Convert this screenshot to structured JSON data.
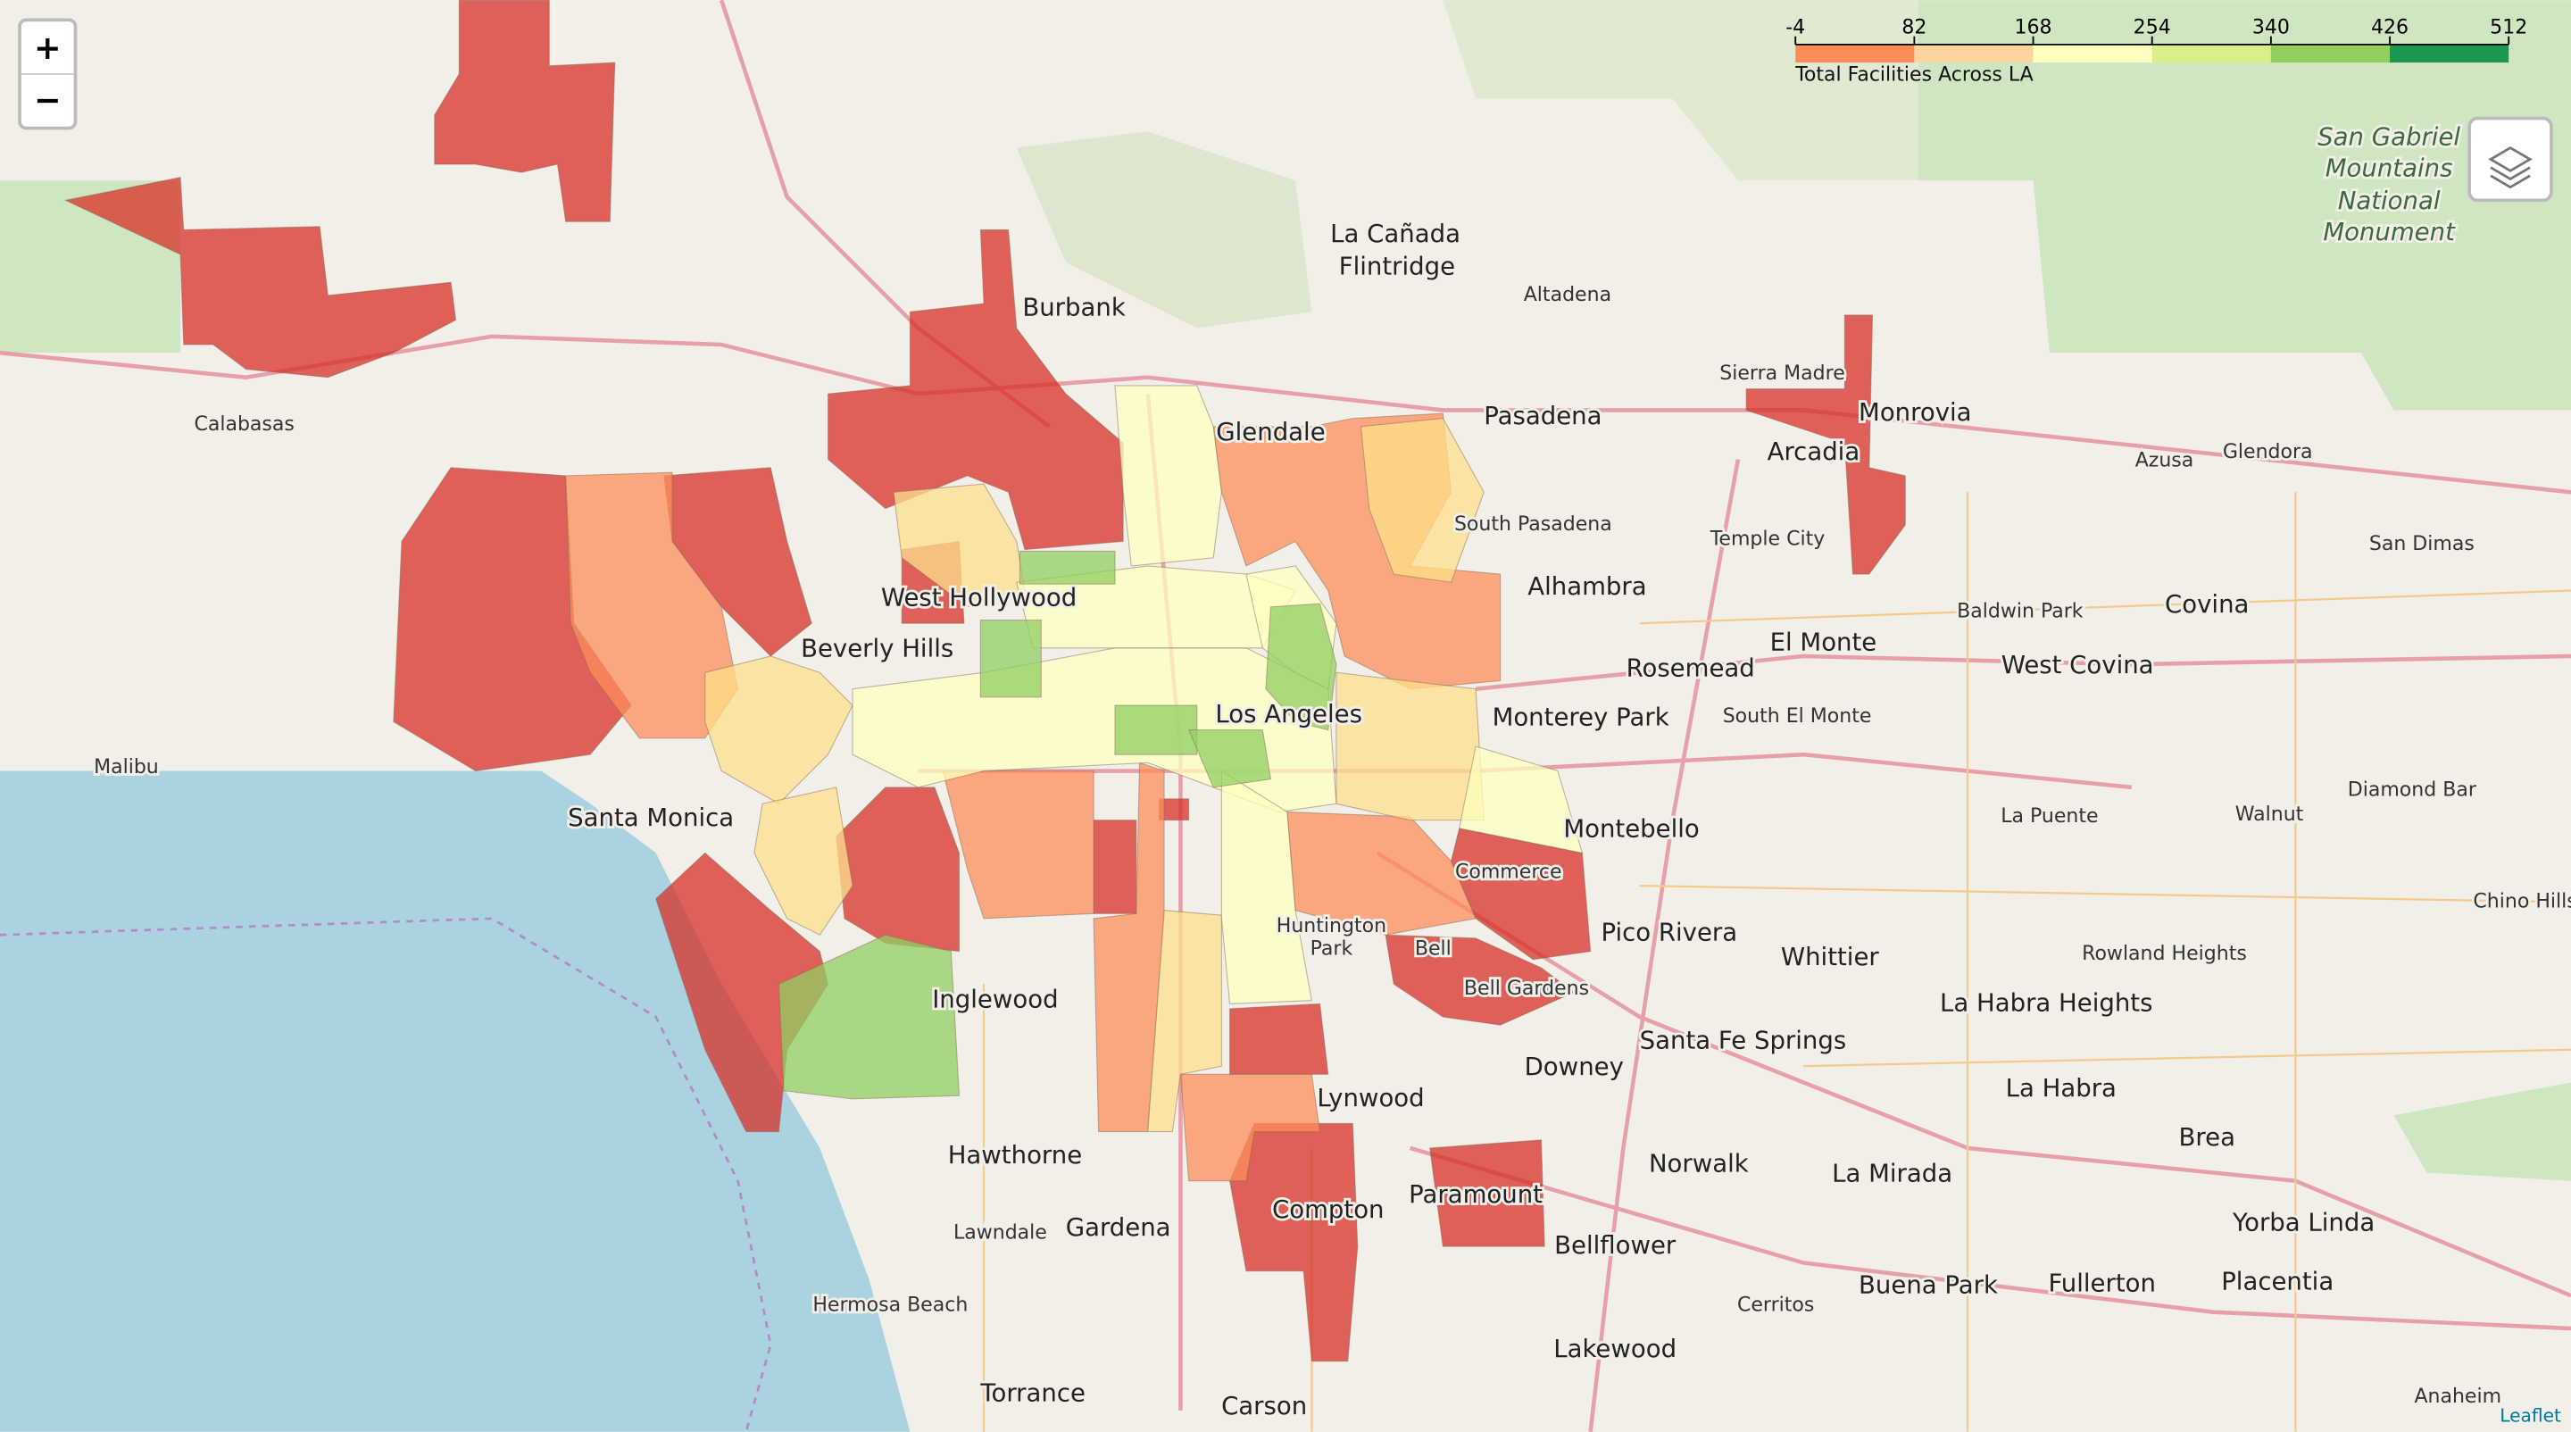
{
  "controls": {
    "zoom_in": "+",
    "zoom_out": "−",
    "attribution": "Leaflet"
  },
  "legend": {
    "caption": "Total Facilities Across LA",
    "ticks": [
      -4,
      82,
      168,
      254,
      340,
      426,
      512
    ],
    "colors": [
      "#fc8d59",
      "#fdd49e",
      "#ffffbf",
      "#d9ef8b",
      "#91cf60",
      "#1a9850"
    ]
  },
  "regions": [
    {
      "value": 10,
      "color": "#d73027"
    },
    {
      "value": 10,
      "color": "#d73027"
    },
    {
      "value": 10,
      "color": "#d73027"
    },
    {
      "value": 10,
      "color": "#d73027"
    },
    {
      "value": 10,
      "color": "#d73027"
    },
    {
      "value": 10,
      "color": "#d73027"
    },
    {
      "value": 10,
      "color": "#d73027"
    },
    {
      "value": 10,
      "color": "#d73027"
    },
    {
      "value": 10,
      "color": "#d73027"
    },
    {
      "value": 10,
      "color": "#d73027"
    },
    {
      "value": 10,
      "color": "#d73027"
    },
    {
      "value": 10,
      "color": "#d73027"
    },
    {
      "value": 10,
      "color": "#d73027"
    },
    {
      "value": 10,
      "color": "#d73027"
    },
    {
      "value": 10,
      "color": "#d73027"
    },
    {
      "value": 10,
      "color": "#d73027"
    },
    {
      "value": 60,
      "color": "#fc8d59"
    },
    {
      "value": 60,
      "color": "#fc8d59"
    },
    {
      "value": 60,
      "color": "#fc8d59"
    },
    {
      "value": 60,
      "color": "#fc8d59"
    },
    {
      "value": 60,
      "color": "#fc8d59"
    },
    {
      "value": 60,
      "color": "#fc8d59"
    },
    {
      "value": 130,
      "color": "#fee08b"
    },
    {
      "value": 130,
      "color": "#fee08b"
    },
    {
      "value": 130,
      "color": "#fee08b"
    },
    {
      "value": 130,
      "color": "#fee08b"
    },
    {
      "value": 130,
      "color": "#fee08b"
    },
    {
      "value": 130,
      "color": "#fee08b"
    },
    {
      "value": 210,
      "color": "#ffffbf"
    },
    {
      "value": 210,
      "color": "#ffffbf"
    },
    {
      "value": 210,
      "color": "#ffffbf"
    },
    {
      "value": 210,
      "color": "#ffffbf"
    },
    {
      "value": 210,
      "color": "#ffffbf"
    },
    {
      "value": 210,
      "color": "#ffffbf"
    },
    {
      "value": 300,
      "color": "#91cf60"
    },
    {
      "value": 300,
      "color": "#91cf60"
    },
    {
      "value": 300,
      "color": "#91cf60"
    },
    {
      "value": 300,
      "color": "#91cf60"
    },
    {
      "value": 300,
      "color": "#91cf60"
    },
    {
      "value": 300,
      "color": "#91cf60"
    }
  ],
  "places": [
    "Burbank",
    "Glendale",
    "Pasadena",
    "La Cañada",
    "Flintridge",
    "Altadena",
    "Sierra Madre",
    "Monrovia",
    "Arcadia",
    "Azusa",
    "Glendora",
    "San Dimas",
    "Covina",
    "West Covina",
    "Alhambra",
    "Temple City",
    "El Monte",
    "Rosemead",
    "Monterey Park",
    "South El Monte",
    "Montebello",
    "Pico Rivera",
    "Whittier",
    "La Habra Heights",
    "Santa Fe Springs",
    "Downey",
    "Norwalk",
    "La Mirada",
    "La Habra",
    "Brea",
    "Yorba Linda",
    "Placentia",
    "Fullerton",
    "Buena Park",
    "Cerritos",
    "Bellflower",
    "Lakewood",
    "Paramount",
    "Compton",
    "Lynwood",
    "Gardena",
    "Hawthorne",
    "Inglewood",
    "Torrance",
    "Carson",
    "Santa Monica",
    "Beverly Hills",
    "West Hollywood",
    "Los Angeles",
    "Calabasas",
    "Malibu",
    "Anaheim",
    "Diamond Bar",
    "Walnut",
    "La Puente",
    "Rowland Heights",
    "Chino Hills",
    "Baldwin Park",
    "South Pasadena",
    "Commerce",
    "Bell",
    "Bell Gardens",
    "Hermosa Beach",
    "Lawndale",
    "Huntington",
    "Park",
    "San Gabriel",
    "Mountains",
    "National",
    "Monument"
  ]
}
